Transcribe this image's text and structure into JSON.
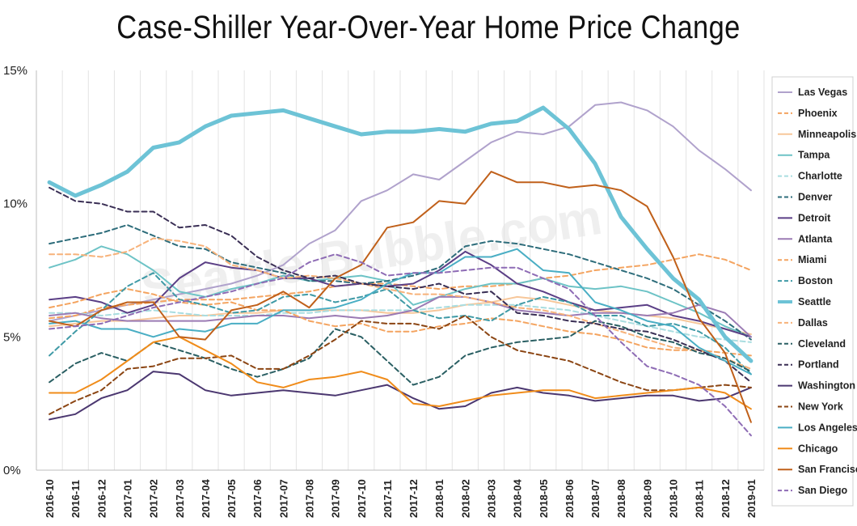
{
  "chart_data": {
    "type": "line",
    "title": "Case-Shiller Year-Over-Year Home Price Change",
    "watermark": "Seattle Bubble.com",
    "xlabel": "",
    "ylabel": "",
    "ylim": [
      0,
      15
    ],
    "yticks": [
      "0%",
      "5%",
      "10%",
      "15%"
    ],
    "ytick_values": [
      0,
      5,
      10,
      15
    ],
    "grid": "vertical",
    "legend": "right",
    "x": [
      "2016-10",
      "2016-11",
      "2016-12",
      "2017-01",
      "2017-02",
      "2017-03",
      "2017-04",
      "2017-05",
      "2017-06",
      "2017-07",
      "2017-08",
      "2017-09",
      "2017-10",
      "2017-11",
      "2017-12",
      "2018-01",
      "2018-02",
      "2018-03",
      "2018-04",
      "2018-05",
      "2018-06",
      "2018-07",
      "2018-08",
      "2018-09",
      "2018-10",
      "2018-11",
      "2018-12",
      "2019-01"
    ],
    "series": [
      {
        "name": "Las Vegas",
        "color": "#b0a2cc",
        "dash": false,
        "width": 2,
        "values": [
          5.6,
          5.8,
          6.0,
          6.2,
          6.4,
          6.6,
          6.8,
          7.0,
          7.3,
          7.7,
          8.5,
          9.0,
          10.1,
          10.5,
          11.1,
          10.9,
          11.6,
          12.3,
          12.7,
          12.6,
          12.9,
          13.7,
          13.8,
          13.5,
          12.9,
          12.0,
          11.3,
          10.5
        ]
      },
      {
        "name": "Phoenix",
        "color": "#f4a460",
        "dash": true,
        "width": 2,
        "values": [
          5.7,
          5.8,
          6.1,
          6.2,
          6.3,
          6.4,
          6.4,
          6.4,
          6.5,
          6.6,
          6.7,
          6.9,
          7.0,
          7.0,
          6.9,
          6.8,
          6.9,
          6.9,
          7.0,
          7.2,
          7.3,
          7.5,
          7.6,
          7.7,
          7.9,
          8.1,
          7.9,
          7.5
        ]
      },
      {
        "name": "Minneapolis",
        "color": "#f7c79a",
        "dash": false,
        "width": 2,
        "values": [
          5.4,
          5.5,
          5.6,
          5.6,
          5.7,
          5.8,
          5.8,
          5.9,
          5.9,
          6.0,
          6.0,
          6.0,
          6.0,
          5.9,
          5.9,
          6.0,
          6.2,
          6.3,
          6.5,
          6.4,
          6.2,
          6.0,
          5.9,
          5.8,
          5.7,
          5.5,
          5.3,
          5.1
        ]
      },
      {
        "name": "Tampa",
        "color": "#6dc3c6",
        "dash": false,
        "width": 2,
        "values": [
          7.6,
          7.9,
          8.4,
          8.1,
          7.5,
          6.7,
          6.5,
          6.8,
          7.0,
          7.3,
          7.1,
          7.2,
          7.3,
          7.1,
          6.2,
          6.5,
          6.8,
          7.0,
          7.0,
          7.2,
          6.9,
          6.8,
          6.9,
          6.7,
          6.3,
          5.9,
          5.4,
          5.0
        ]
      },
      {
        "name": "Charlotte",
        "color": "#a9dde0",
        "dash": true,
        "width": 2,
        "values": [
          5.9,
          5.9,
          5.8,
          5.9,
          6.0,
          5.9,
          5.8,
          5.8,
          5.8,
          5.9,
          5.9,
          6.0,
          6.0,
          6.0,
          6.0,
          6.1,
          6.2,
          6.2,
          6.2,
          6.1,
          6.0,
          5.8,
          5.6,
          5.4,
          5.2,
          5.0,
          4.9,
          4.8
        ]
      },
      {
        "name": "Denver",
        "color": "#2e6d7b",
        "dash": true,
        "width": 2,
        "values": [
          8.5,
          8.7,
          8.9,
          9.2,
          8.8,
          8.4,
          8.3,
          7.8,
          7.6,
          7.4,
          7.1,
          7.1,
          7.0,
          7.1,
          7.3,
          7.6,
          8.4,
          8.6,
          8.5,
          8.3,
          8.1,
          7.8,
          7.5,
          7.2,
          6.8,
          6.2,
          5.6,
          4.9
        ]
      },
      {
        "name": "Detroit",
        "color": "#5b3f86",
        "dash": false,
        "width": 2,
        "values": [
          6.4,
          6.5,
          6.3,
          5.9,
          6.2,
          7.2,
          7.8,
          7.6,
          7.5,
          7.2,
          7.2,
          6.9,
          7.0,
          6.9,
          7.0,
          7.5,
          8.2,
          7.7,
          7.0,
          6.7,
          6.3,
          6.0,
          6.1,
          6.2,
          5.8,
          5.6,
          5.3,
          5.0
        ]
      },
      {
        "name": "Atlanta",
        "color": "#9b7bb4",
        "dash": false,
        "width": 2,
        "values": [
          5.8,
          5.9,
          5.7,
          5.6,
          5.6,
          5.6,
          5.6,
          5.7,
          5.8,
          5.8,
          5.7,
          5.8,
          5.7,
          5.8,
          6.0,
          6.5,
          6.5,
          6.3,
          6.0,
          5.9,
          5.8,
          5.9,
          5.9,
          5.8,
          5.9,
          6.2,
          5.9,
          5.0
        ]
      },
      {
        "name": "Miami",
        "color": "#f4a460",
        "dash": true,
        "width": 2,
        "values": [
          6.1,
          6.3,
          6.6,
          6.8,
          6.6,
          6.3,
          6.2,
          6.3,
          6.0,
          6.0,
          5.6,
          5.4,
          5.5,
          5.2,
          5.2,
          5.4,
          5.5,
          5.7,
          5.6,
          5.4,
          5.2,
          5.1,
          4.9,
          4.6,
          4.5,
          4.5,
          4.4,
          4.3
        ]
      },
      {
        "name": "Boston",
        "color": "#3f9aa6",
        "dash": true,
        "width": 2,
        "values": [
          4.3,
          5.2,
          6.0,
          6.9,
          7.4,
          6.4,
          6.2,
          5.9,
          6.0,
          6.5,
          6.6,
          6.3,
          6.5,
          6.8,
          6.0,
          5.7,
          5.8,
          5.6,
          6.2,
          6.5,
          6.3,
          5.8,
          5.8,
          5.4,
          5.5,
          5.2,
          4.6,
          3.6
        ]
      },
      {
        "name": "Seattle",
        "color": "#6dc3d6",
        "dash": false,
        "width": 5,
        "values": [
          10.8,
          10.3,
          10.7,
          11.2,
          12.1,
          12.3,
          12.9,
          13.3,
          13.4,
          13.5,
          13.2,
          12.9,
          12.6,
          12.7,
          12.7,
          12.8,
          12.7,
          13.0,
          13.1,
          13.6,
          12.8,
          11.5,
          9.5,
          8.3,
          7.2,
          6.4,
          5.0,
          4.1
        ]
      },
      {
        "name": "Dallas",
        "color": "#f7b27a",
        "dash": true,
        "width": 2,
        "values": [
          8.1,
          8.1,
          8.0,
          8.2,
          8.7,
          8.6,
          8.4,
          7.7,
          7.5,
          7.2,
          7.3,
          7.2,
          7.0,
          6.8,
          6.6,
          6.6,
          6.5,
          6.3,
          6.1,
          6.0,
          5.8,
          5.5,
          5.2,
          4.9,
          4.6,
          4.5,
          4.2,
          3.8
        ]
      },
      {
        "name": "Cleveland",
        "color": "#2a5f63",
        "dash": true,
        "width": 2,
        "values": [
          3.3,
          4.0,
          4.4,
          4.1,
          4.8,
          4.5,
          4.2,
          3.8,
          3.5,
          3.8,
          4.2,
          5.3,
          5.0,
          4.1,
          3.2,
          3.5,
          4.3,
          4.6,
          4.8,
          4.9,
          5.0,
          5.6,
          5.4,
          5.0,
          4.8,
          4.4,
          4.2,
          3.7
        ]
      },
      {
        "name": "Portland",
        "color": "#3a2f55",
        "dash": true,
        "width": 2,
        "values": [
          10.6,
          10.1,
          10.0,
          9.7,
          9.7,
          9.1,
          9.2,
          8.8,
          8.0,
          7.5,
          7.2,
          7.3,
          7.0,
          6.9,
          6.8,
          7.0,
          6.6,
          6.7,
          5.9,
          5.8,
          5.6,
          5.5,
          5.3,
          5.2,
          4.9,
          4.5,
          4.1,
          3.3
        ]
      },
      {
        "name": "Washington",
        "color": "#4b3770",
        "dash": false,
        "width": 2,
        "values": [
          1.9,
          2.1,
          2.7,
          3.0,
          3.7,
          3.6,
          3.0,
          2.8,
          2.9,
          3.0,
          2.9,
          2.8,
          3.0,
          3.2,
          2.7,
          2.3,
          2.4,
          2.9,
          3.1,
          2.9,
          2.8,
          2.6,
          2.7,
          2.8,
          2.8,
          2.6,
          2.7,
          3.1
        ]
      },
      {
        "name": "New York",
        "color": "#8b4513",
        "dash": true,
        "width": 2,
        "values": [
          2.1,
          2.6,
          3.0,
          3.8,
          3.9,
          4.2,
          4.2,
          4.3,
          3.8,
          3.8,
          4.3,
          4.9,
          5.6,
          5.5,
          5.5,
          5.3,
          5.8,
          5.0,
          4.5,
          4.3,
          4.1,
          3.7,
          3.3,
          3.0,
          3.0,
          3.1,
          3.2,
          3.1
        ]
      },
      {
        "name": "Los Angeles",
        "color": "#4aaec4",
        "dash": false,
        "width": 2,
        "values": [
          5.5,
          5.6,
          5.3,
          5.3,
          5.0,
          5.3,
          5.2,
          5.5,
          5.5,
          6.0,
          6.0,
          6.1,
          6.4,
          7.0,
          7.4,
          7.4,
          8.0,
          8.0,
          8.3,
          7.5,
          7.4,
          6.3,
          6.0,
          5.6,
          5.4,
          4.6,
          4.1,
          3.6
        ]
      },
      {
        "name": "Chicago",
        "color": "#f08c1a",
        "dash": false,
        "width": 2,
        "values": [
          2.9,
          2.9,
          3.4,
          4.1,
          4.8,
          5.0,
          4.5,
          4.0,
          3.3,
          3.1,
          3.4,
          3.5,
          3.7,
          3.4,
          2.5,
          2.4,
          2.6,
          2.8,
          2.9,
          3.0,
          3.0,
          2.7,
          2.8,
          2.9,
          3.0,
          3.1,
          2.9,
          2.3
        ]
      },
      {
        "name": "San Francisco",
        "color": "#c0601a",
        "dash": false,
        "width": 2,
        "values": [
          5.6,
          5.4,
          6.0,
          6.3,
          6.3,
          5.0,
          4.9,
          6.0,
          6.2,
          6.7,
          6.1,
          7.2,
          7.7,
          9.1,
          9.3,
          10.1,
          10.0,
          11.2,
          10.8,
          10.8,
          10.6,
          10.7,
          10.5,
          9.9,
          8.0,
          5.7,
          4.4,
          1.8
        ]
      },
      {
        "name": "San Diego",
        "color": "#8e6cb5",
        "dash": true,
        "width": 2,
        "values": [
          5.3,
          5.4,
          5.5,
          5.8,
          6.1,
          6.3,
          6.5,
          6.7,
          7.0,
          7.2,
          7.8,
          8.1,
          7.8,
          7.3,
          7.4,
          7.4,
          7.5,
          7.6,
          7.6,
          7.2,
          6.8,
          5.8,
          4.8,
          3.9,
          3.6,
          3.2,
          2.4,
          1.3
        ]
      }
    ]
  }
}
